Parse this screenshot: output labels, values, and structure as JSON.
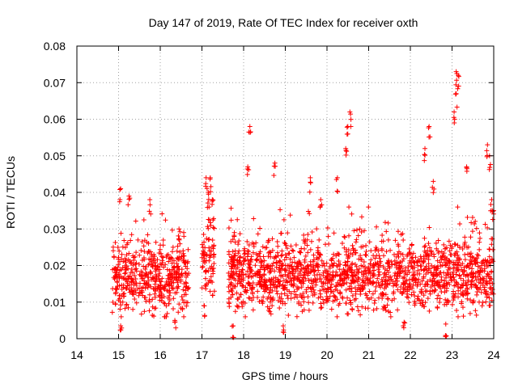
{
  "chart_data": {
    "type": "scatter",
    "title": "Day 147 of 2019, Rate Of TEC Index for receiver oxth",
    "xlabel": "GPS time / hours",
    "ylabel": "ROTI / TECUs",
    "xlim": [
      14,
      24
    ],
    "ylim": [
      0,
      0.08
    ],
    "xticks": [
      14,
      15,
      16,
      17,
      18,
      19,
      20,
      21,
      22,
      23,
      24
    ],
    "xtick_labels": [
      "14",
      "15",
      "16",
      "17",
      "18",
      "19",
      "20",
      "21",
      "22",
      "23",
      "24"
    ],
    "yticks": [
      0,
      0.01,
      0.02,
      0.03,
      0.04,
      0.05,
      0.06,
      0.07,
      0.08
    ],
    "ytick_labels": [
      "0",
      "0.01",
      "0.02",
      "0.03",
      "0.04",
      "0.05",
      "0.06",
      "0.07",
      "0.08"
    ],
    "grid": true,
    "marker": "+",
    "marker_color": "#ff0000",
    "series_name": "ROTI",
    "segments": [
      {
        "x_start": 14.85,
        "x_end": 16.7,
        "median": 0.016,
        "spread": 0.006,
        "peaks": [
          [
            15.05,
            0.041
          ],
          [
            15.25,
            0.039
          ],
          [
            15.75,
            0.038
          ],
          [
            16.45,
            0.03
          ],
          [
            15.05,
            0.0035
          ],
          [
            16.35,
            0.005
          ]
        ]
      },
      {
        "x_start": 17.0,
        "x_end": 17.3,
        "median": 0.021,
        "spread": 0.006,
        "peaks": [
          [
            17.1,
            0.044
          ],
          [
            17.2,
            0.044
          ],
          [
            17.15,
            0.04
          ],
          [
            17.25,
            0.038
          ],
          [
            17.05,
            0.009
          ]
        ]
      },
      {
        "x_start": 17.62,
        "x_end": 24.0,
        "median": 0.017,
        "spread": 0.006,
        "peaks": [
          [
            17.75,
            0.0035
          ],
          [
            18.15,
            0.058
          ],
          [
            18.1,
            0.047
          ],
          [
            18.75,
            0.048
          ],
          [
            18.95,
            0.0035
          ],
          [
            19.6,
            0.044
          ],
          [
            19.85,
            0.038
          ],
          [
            20.25,
            0.044
          ],
          [
            20.45,
            0.052
          ],
          [
            20.55,
            0.062
          ],
          [
            20.5,
            0.058
          ],
          [
            22.35,
            0.052
          ],
          [
            22.45,
            0.058
          ],
          [
            22.55,
            0.043
          ],
          [
            22.85,
            0.004
          ],
          [
            23.1,
            0.073
          ],
          [
            23.15,
            0.072
          ],
          [
            23.1,
            0.067
          ],
          [
            23.05,
            0.062
          ],
          [
            23.35,
            0.047
          ],
          [
            23.85,
            0.053
          ],
          [
            23.9,
            0.05
          ],
          [
            23.95,
            0.038
          ],
          [
            24.0,
            0.035
          ],
          [
            21.85,
            0.0045
          ]
        ]
      }
    ]
  }
}
